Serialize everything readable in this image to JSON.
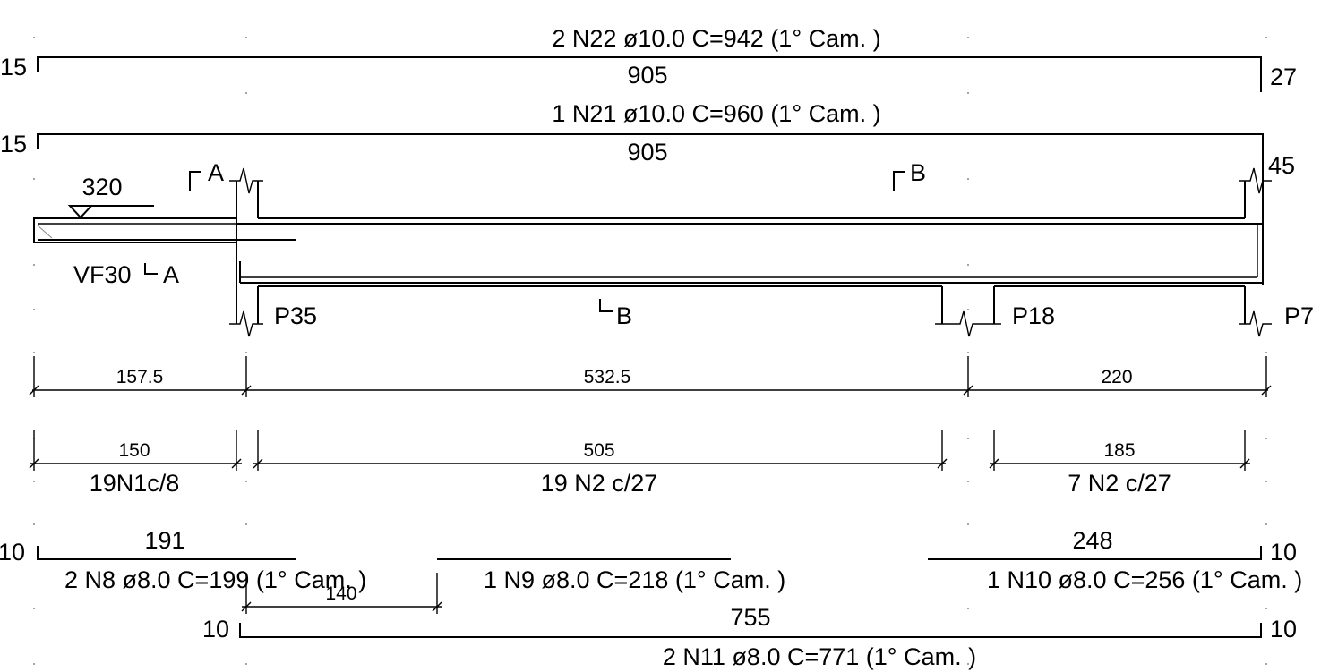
{
  "bars": {
    "n22": {
      "label": "2 N22 ø10.0 C=942",
      "camada": "(1° Cam. )",
      "length": "905",
      "left_hook": "15",
      "right_hook": "27"
    },
    "n21": {
      "label": "1 N21 ø10.0 C=960",
      "camada": "(1° Cam. )",
      "length": "905",
      "left_hook": "15",
      "right_hook": "45"
    },
    "n8": {
      "label": "2 N8 ø8.0 C=199",
      "camada": "(1° Cam. )",
      "length": "191",
      "left_hook": "10"
    },
    "n9": {
      "label": "1 N9 ø8.0 C=218",
      "camada": "(1° Cam. )"
    },
    "n10": {
      "label": "1 N10 ø8.0 C=256",
      "camada": "(1° Cam. )",
      "length": "248",
      "right_hook": "10"
    },
    "n11": {
      "label": "2 N11 ø8.0 C=771",
      "camada": "(1° Cam. )",
      "length": "755",
      "left_hook": "10",
      "right_hook": "10"
    },
    "n9_offset": "140"
  },
  "beam": {
    "level": "320",
    "name": "VF30",
    "section_a": "A",
    "section_b": "B"
  },
  "supports": {
    "p35": "P35",
    "p18": "P18",
    "p7": "P7"
  },
  "spans": [
    "157.5",
    "532.5",
    "220"
  ],
  "stirrup_zones": [
    {
      "length": "150",
      "label": "19N1c/8"
    },
    {
      "length": "505",
      "label": "19 N2 c/27"
    },
    {
      "length": "185",
      "label": "7 N2 c/27"
    }
  ]
}
